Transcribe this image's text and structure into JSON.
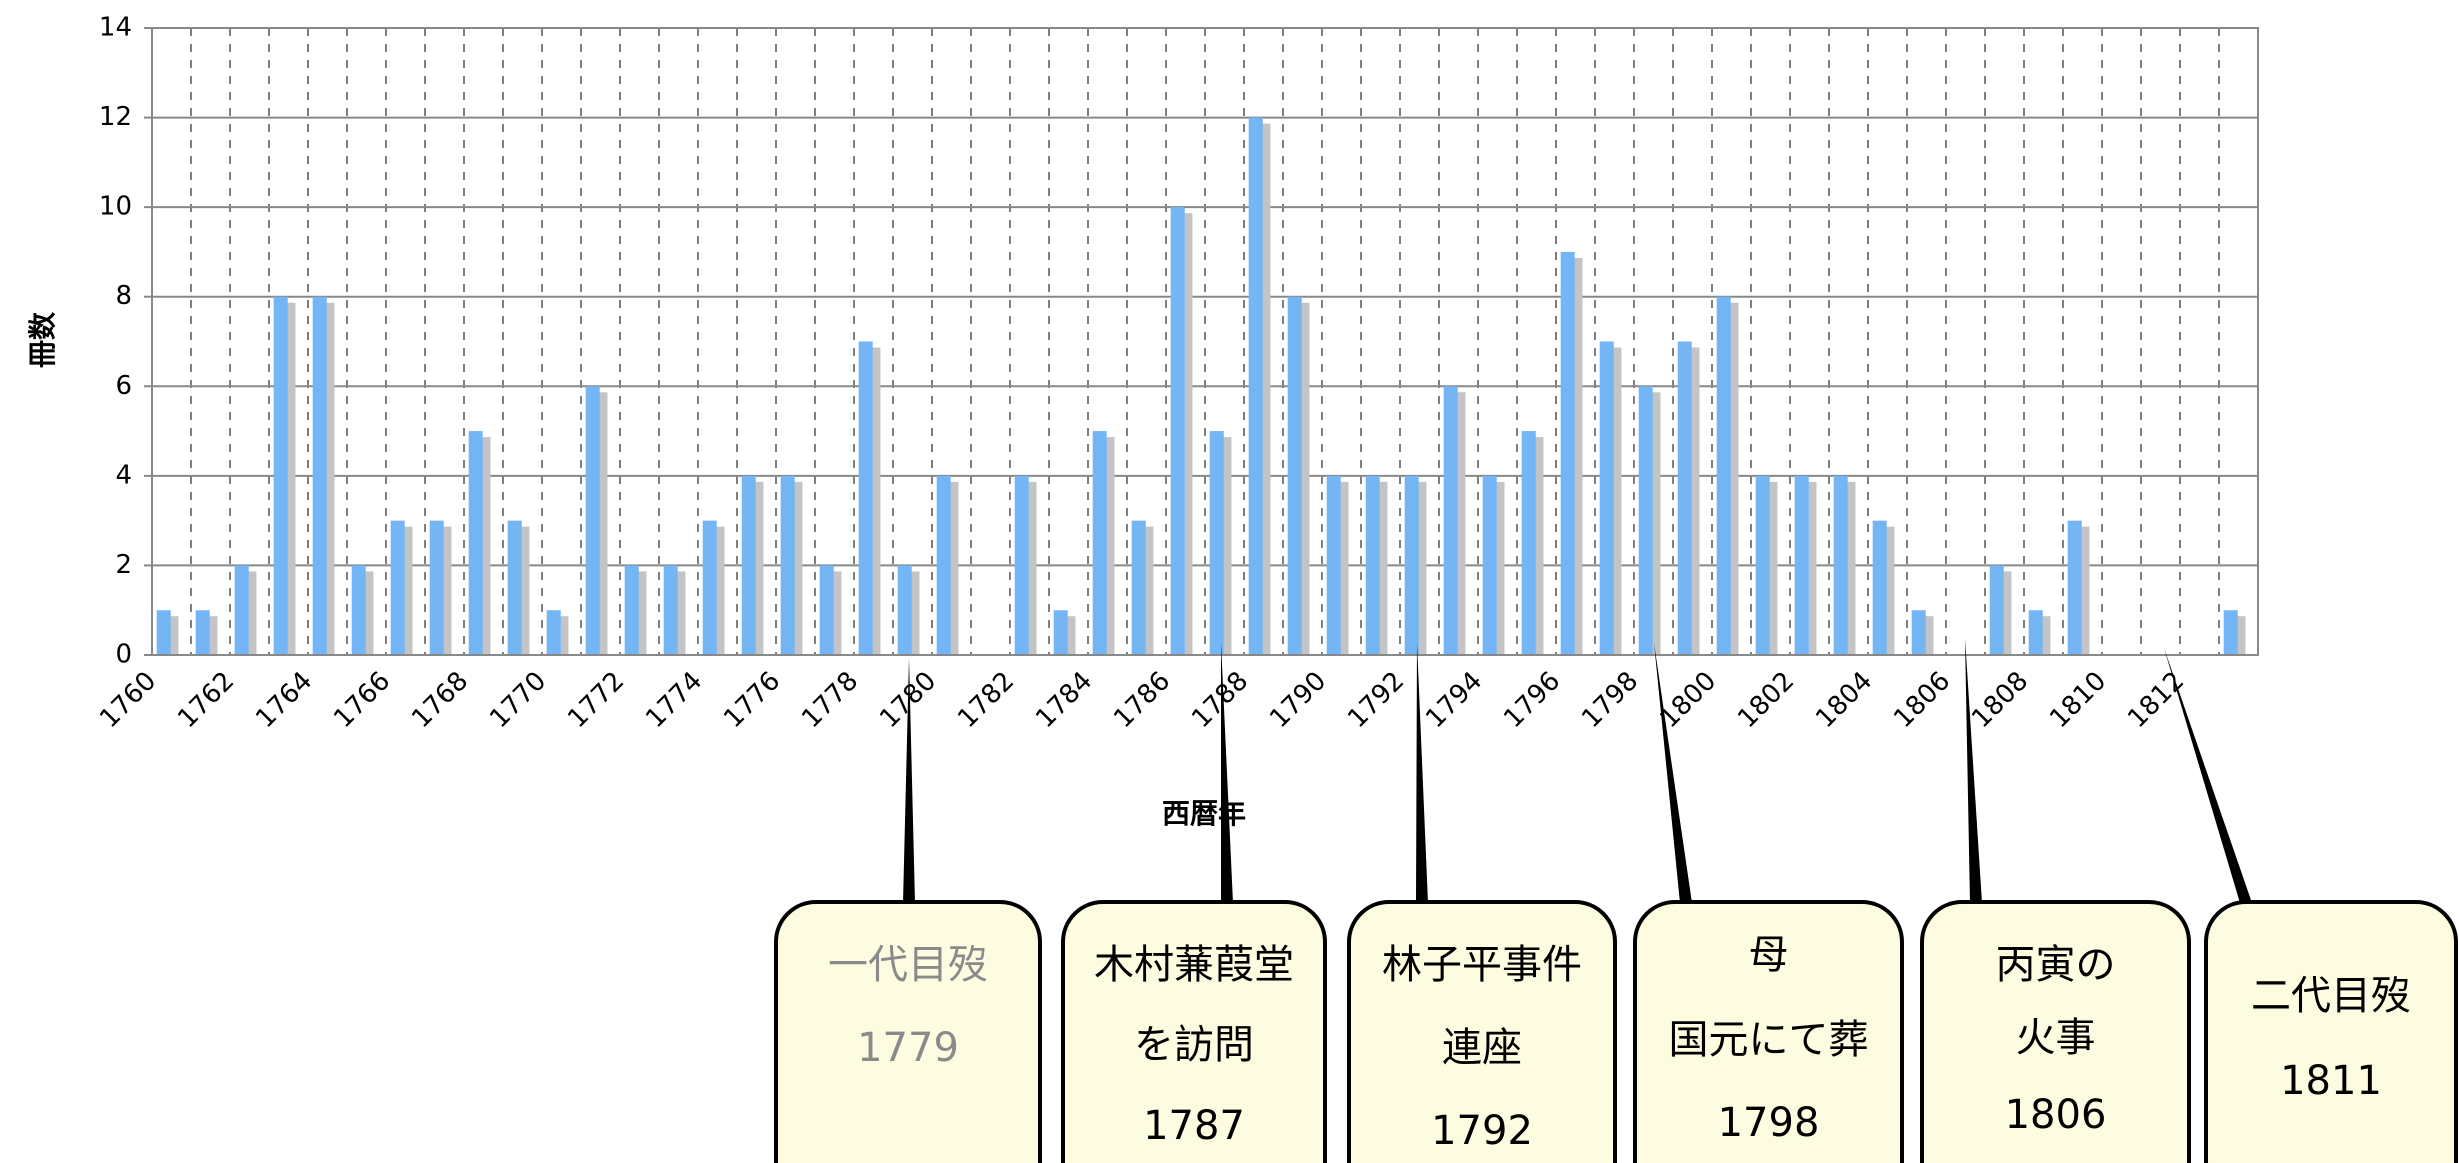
{
  "chart_data": {
    "type": "bar",
    "ylabel": "冊数",
    "xlabel": "西暦年",
    "categories": [
      "1760",
      null,
      "1762",
      null,
      "1764",
      null,
      "1766",
      null,
      "1768",
      null,
      "1770",
      null,
      "1772",
      null,
      "1774",
      null,
      "1776",
      null,
      "1778",
      null,
      "1780",
      null,
      "1782",
      null,
      "1784",
      null,
      "1786",
      null,
      "1788",
      null,
      "1790",
      null,
      "1792",
      null,
      "1794",
      null,
      "1796",
      null,
      "1798",
      null,
      "1800",
      null,
      "1802",
      null,
      "1804",
      null,
      "1806",
      null,
      "1808",
      null,
      "1810",
      null,
      "1812",
      null
    ],
    "values": [
      1,
      1,
      2,
      8,
      8,
      2,
      3,
      3,
      5,
      3,
      1,
      6,
      2,
      2,
      3,
      4,
      4,
      2,
      7,
      2,
      4,
      0,
      4,
      1,
      5,
      3,
      10,
      5,
      12,
      8,
      4,
      4,
      4,
      6,
      4,
      5,
      9,
      7,
      6,
      7,
      8,
      4,
      4,
      4,
      3,
      1,
      0,
      2,
      1,
      3,
      0,
      0,
      0,
      1
    ],
    "color": "#74b6f5",
    "ylim": [
      0,
      14
    ],
    "yticks": [
      0,
      2,
      4,
      6,
      8,
      10,
      12,
      14
    ],
    "grid": true,
    "annotations": [
      {
        "lines": [
          "一代目歿",
          "1779"
        ]
      },
      {
        "lines": [
          "木村蒹葭堂",
          "を訪問",
          "1787"
        ]
      },
      {
        "lines": [
          "林子平事件",
          "連座",
          "1792"
        ]
      },
      {
        "lines": [
          "母",
          "国元にて葬",
          "1798"
        ]
      },
      {
        "lines": [
          "丙寅の",
          "火事",
          "1806"
        ]
      },
      {
        "lines": [
          "二代目歿",
          "1811"
        ]
      }
    ]
  }
}
